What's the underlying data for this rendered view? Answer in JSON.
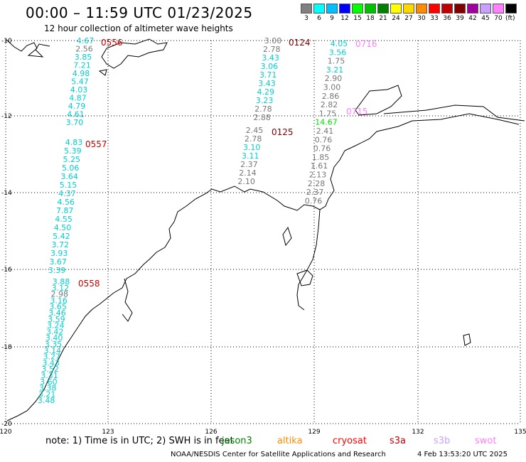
{
  "header": {
    "title": "00:00 – 11:59 UTC 01/23/2025",
    "subtitle": "12 hour collection of altimeter wave heights"
  },
  "colorbar": {
    "unit": "(ft)",
    "bins": [
      {
        "label": "3",
        "color": "#808080"
      },
      {
        "label": "6",
        "color": "#00ffff"
      },
      {
        "label": "9",
        "color": "#00bfff"
      },
      {
        "label": "12",
        "color": "#0000ff"
      },
      {
        "label": "15",
        "color": "#00ff00"
      },
      {
        "label": "18",
        "color": "#00c000"
      },
      {
        "label": "21",
        "color": "#008000"
      },
      {
        "label": "24",
        "color": "#ffff00"
      },
      {
        "label": "27",
        "color": "#ffd700"
      },
      {
        "label": "30",
        "color": "#ff8c00"
      },
      {
        "label": "33",
        "color": "#ff0000"
      },
      {
        "label": "36",
        "color": "#c00000"
      },
      {
        "label": "39",
        "color": "#800000"
      },
      {
        "label": "42",
        "color": "#a000a0"
      },
      {
        "label": "45",
        "color": "#c8a0ff"
      },
      {
        "label": "70",
        "color": "#ff80ff"
      },
      {
        "label": "",
        "color": "#000000"
      }
    ]
  },
  "axes": {
    "lon_labels": [
      "120",
      "123",
      "126",
      "129",
      "132",
      "135"
    ],
    "lat_labels": [
      "-10",
      "-12",
      "-14",
      "-16",
      "-18",
      "-20"
    ]
  },
  "tracks": [
    {
      "time": "0556",
      "time_color": "#cc0000",
      "points": [
        {
          "v": "4.67",
          "c": "#00d0d0"
        },
        {
          "v": "2.56",
          "c": "#777777"
        },
        {
          "v": "3.85",
          "c": "#00d0d0"
        },
        {
          "v": "7.21",
          "c": "#00d0d0"
        },
        {
          "v": "4.98",
          "c": "#00d0d0"
        },
        {
          "v": "5.47",
          "c": "#00d0d0"
        },
        {
          "v": "4.03",
          "c": "#00d0d0"
        },
        {
          "v": "4.87",
          "c": "#00d0d0"
        },
        {
          "v": "4.79",
          "c": "#00d0d0"
        },
        {
          "v": "4.61",
          "c": "#00d0d0"
        },
        {
          "v": "3.70",
          "c": "#00d0d0"
        }
      ]
    },
    {
      "time": "0557",
      "time_color": "#cc0000",
      "points": [
        {
          "v": "4.83",
          "c": "#00d0d0"
        },
        {
          "v": "5.39",
          "c": "#00d0d0"
        },
        {
          "v": "5.25",
          "c": "#00d0d0"
        },
        {
          "v": "5.06",
          "c": "#00d0d0"
        },
        {
          "v": "3.64",
          "c": "#00d0d0"
        },
        {
          "v": "5.15",
          "c": "#00d0d0"
        },
        {
          "v": "4.37",
          "c": "#00d0d0"
        },
        {
          "v": "4.56",
          "c": "#00d0d0"
        },
        {
          "v": "7.87",
          "c": "#00d0d0"
        },
        {
          "v": "4.55",
          "c": "#00d0d0"
        },
        {
          "v": "4.50",
          "c": "#00d0d0"
        },
        {
          "v": "5.42",
          "c": "#00d0d0"
        },
        {
          "v": "3.72",
          "c": "#00d0d0"
        },
        {
          "v": "3.93",
          "c": "#00d0d0"
        },
        {
          "v": "3.67",
          "c": "#00d0d0"
        },
        {
          "v": "3.39",
          "c": "#00d0d0"
        }
      ]
    },
    {
      "time": "0558",
      "time_color": "#cc0000",
      "points": [
        {
          "v": "3.88",
          "c": "#00d0d0"
        },
        {
          "v": "3.12",
          "c": "#00d0d0"
        },
        {
          "v": "2.98",
          "c": "#777777"
        },
        {
          "v": "3.16",
          "c": "#00d0d0"
        },
        {
          "v": "3.65",
          "c": "#00d0d0"
        },
        {
          "v": "3.46",
          "c": "#00d0d0"
        },
        {
          "v": "3.59",
          "c": "#00d0d0"
        },
        {
          "v": "3.24",
          "c": "#00d0d0"
        },
        {
          "v": "3.42",
          "c": "#00d0d0"
        },
        {
          "v": "3.40",
          "c": "#00d0d0"
        },
        {
          "v": "3.35",
          "c": "#00d0d0"
        },
        {
          "v": "3.14",
          "c": "#00d0d0"
        },
        {
          "v": "3.27",
          "c": "#00d0d0"
        },
        {
          "v": "3.43",
          "c": "#00d0d0"
        },
        {
          "v": "3.52",
          "c": "#00d0d0"
        },
        {
          "v": "3.31",
          "c": "#00d0d0"
        },
        {
          "v": "3.60",
          "c": "#00d0d0"
        },
        {
          "v": "3.38",
          "c": "#00d0d0"
        },
        {
          "v": "3.21",
          "c": "#00d0d0"
        },
        {
          "v": "3.48",
          "c": "#00d0d0"
        }
      ]
    },
    {
      "time": "0124",
      "time_color": "#800000",
      "points": [
        {
          "v": "3.00",
          "c": "#777777"
        },
        {
          "v": "2.78",
          "c": "#777777"
        },
        {
          "v": "3.43",
          "c": "#00d0d0"
        },
        {
          "v": "3.06",
          "c": "#00d0d0"
        },
        {
          "v": "3.71",
          "c": "#00d0d0"
        },
        {
          "v": "3.43",
          "c": "#00d0d0"
        },
        {
          "v": "4.29",
          "c": "#00d0d0"
        },
        {
          "v": "3.23",
          "c": "#00d0d0"
        },
        {
          "v": "2.78",
          "c": "#777777"
        },
        {
          "v": "2.88",
          "c": "#777777"
        }
      ]
    },
    {
      "time": "0125",
      "time_color": "#800000",
      "points": [
        {
          "v": "2.45",
          "c": "#777777"
        },
        {
          "v": "2.78",
          "c": "#777777"
        },
        {
          "v": "3.10",
          "c": "#00d0d0"
        },
        {
          "v": "3.11",
          "c": "#00d0d0"
        },
        {
          "v": "2.37",
          "c": "#777777"
        },
        {
          "v": "2.14",
          "c": "#777777"
        },
        {
          "v": "2.10",
          "c": "#777777"
        }
      ]
    },
    {
      "time": "0716",
      "time_color": "#ff80ff",
      "points": [
        {
          "v": "4.05",
          "c": "#00d0d0"
        },
        {
          "v": "3.56",
          "c": "#00d0d0"
        },
        {
          "v": "1.75",
          "c": "#777777"
        },
        {
          "v": "3.21",
          "c": "#00d0d0"
        },
        {
          "v": "2.90",
          "c": "#777777"
        },
        {
          "v": "3.00",
          "c": "#777777"
        },
        {
          "v": "2.86",
          "c": "#777777"
        },
        {
          "v": "2.82",
          "c": "#777777"
        },
        {
          "v": "1.75",
          "c": "#777777"
        },
        {
          "v": "14.67",
          "c": "#00e000"
        },
        {
          "v": "2.41",
          "c": "#777777"
        },
        {
          "v": "0.76",
          "c": "#777777"
        },
        {
          "v": "0.76",
          "c": "#777777"
        },
        {
          "v": "1.85",
          "c": "#777777"
        },
        {
          "v": "1.61",
          "c": "#777777"
        },
        {
          "v": "2.13",
          "c": "#777777"
        },
        {
          "v": "2.28",
          "c": "#777777"
        },
        {
          "v": "2.37",
          "c": "#777777"
        },
        {
          "v": "0.76",
          "c": "#777777"
        }
      ]
    },
    {
      "time": "0715",
      "time_color": "#ff80ff",
      "points": []
    }
  ],
  "footer": {
    "note": "note: 1) Time is in UTC; 2) SWH is in feet",
    "satellites": [
      {
        "name": "jason3",
        "color": "#008000"
      },
      {
        "name": "altika",
        "color": "#ff8c00"
      },
      {
        "name": "cryosat",
        "color": "#ff0000"
      },
      {
        "name": "s3a",
        "color": "#c00000"
      },
      {
        "name": "s3b",
        "color": "#c8a0ff"
      },
      {
        "name": "swot",
        "color": "#ff80ff"
      }
    ],
    "credit": "NOAA/NESDIS Center for Satellite Applications and Research",
    "timestamp": "4 Feb 13:53:20 UTC 2025"
  }
}
